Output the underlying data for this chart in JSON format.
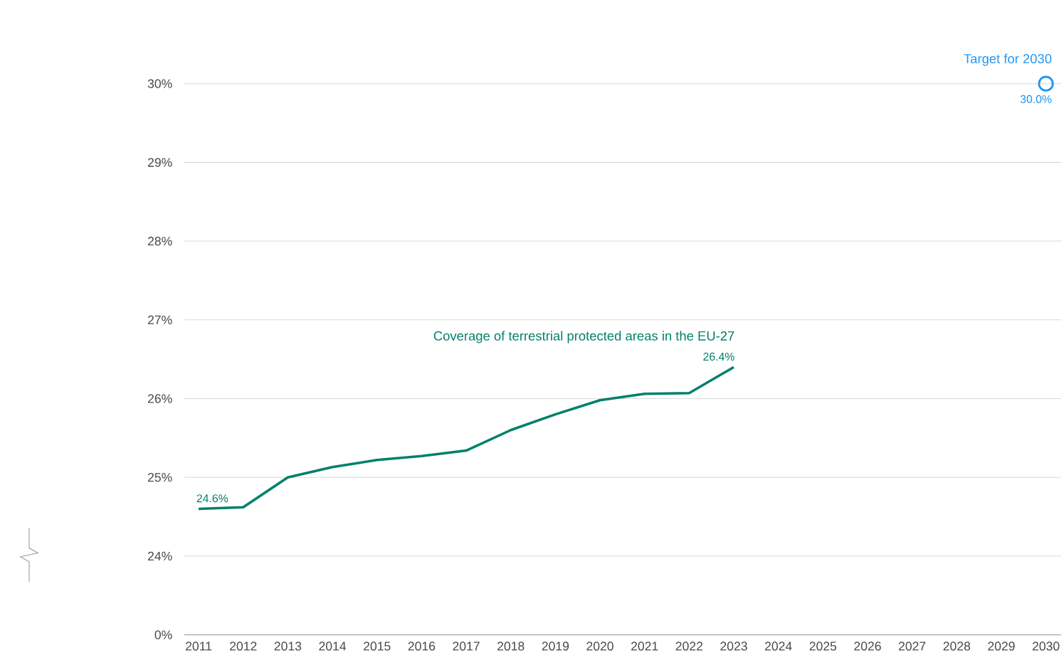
{
  "chart_data": {
    "type": "line",
    "categories": [
      "2011",
      "2012",
      "2013",
      "2014",
      "2015",
      "2016",
      "2017",
      "2018",
      "2019",
      "2020",
      "2021",
      "2022",
      "2023",
      "2024",
      "2025",
      "2026",
      "2027",
      "2028",
      "2029",
      "2030"
    ],
    "series": [
      {
        "name": "Coverage of terrestrial protected areas in the EU-27",
        "color": "#00806a",
        "marker": "none",
        "values": [
          24.6,
          24.62,
          25.0,
          25.13,
          25.22,
          25.27,
          25.34,
          25.6,
          25.8,
          25.98,
          26.06,
          26.07,
          26.4,
          null,
          null,
          null,
          null,
          null,
          null,
          null
        ],
        "value_labels": [
          "24.6%",
          null,
          null,
          null,
          null,
          null,
          null,
          null,
          null,
          null,
          null,
          null,
          "26.4%",
          null,
          null,
          null,
          null,
          null,
          null,
          null
        ]
      },
      {
        "name": "Target for 2030",
        "type": "scatter",
        "color": "#2196f3",
        "marker": "circle",
        "values": [
          null,
          null,
          null,
          null,
          null,
          null,
          null,
          null,
          null,
          null,
          null,
          null,
          null,
          null,
          null,
          null,
          null,
          null,
          null,
          30.0
        ],
        "value_labels": [
          null,
          null,
          null,
          null,
          null,
          null,
          null,
          null,
          null,
          null,
          null,
          null,
          null,
          null,
          null,
          null,
          null,
          null,
          null,
          "30.0%"
        ]
      }
    ],
    "ylim": [
      24,
      30
    ],
    "yticks": [
      {
        "value": 24,
        "label": "24%"
      },
      {
        "value": 25,
        "label": "25%"
      },
      {
        "value": 26,
        "label": "26%"
      },
      {
        "value": 27,
        "label": "27%"
      },
      {
        "value": 28,
        "label": "28%"
      },
      {
        "value": 29,
        "label": "29%"
      },
      {
        "value": 30,
        "label": "30%"
      }
    ],
    "annotations": [
      "0%"
    ],
    "grid": "y",
    "legend": false
  }
}
